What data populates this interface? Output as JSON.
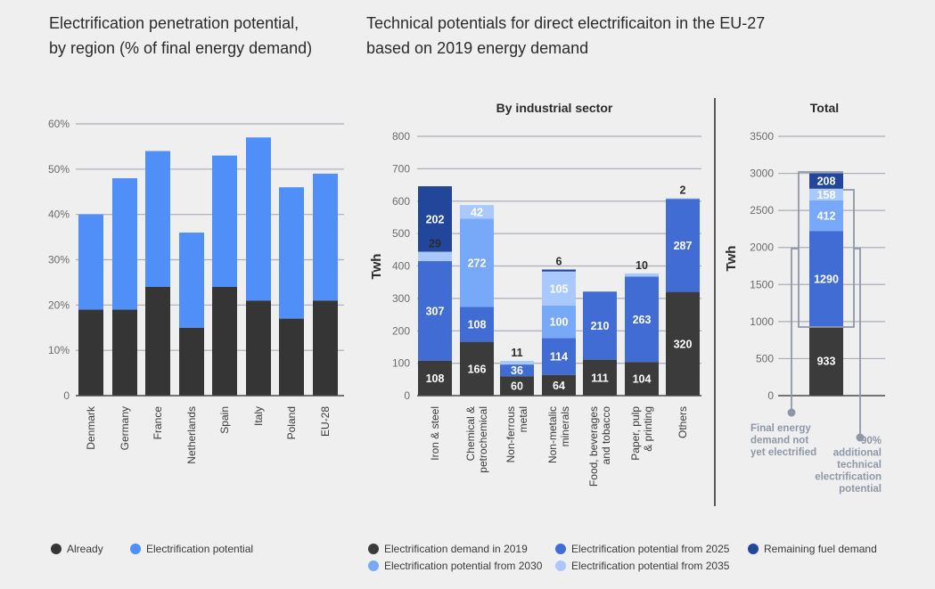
{
  "left_title": [
    "Electrification penetration potential,",
    "by region (% of final energy demand)"
  ],
  "right_title": [
    "Technical potentials for direct electrificaiton in the EU-27",
    "based on 2019 energy demand"
  ],
  "chart_data": [
    {
      "type": "bar",
      "stacked": true,
      "categories": [
        "Denmark",
        "Germany",
        "France",
        "Netherlands",
        "Spain",
        "Italy",
        "Poland",
        "EU-28"
      ],
      "series": [
        {
          "name": "Already",
          "color": "#353535",
          "values": [
            19,
            19,
            24,
            15,
            24,
            21,
            17,
            21
          ]
        },
        {
          "name": "Electrification potential",
          "color": "#4f8ff7",
          "values": [
            21,
            29,
            30,
            21,
            29,
            36,
            29,
            28
          ]
        }
      ],
      "yticks": [
        "0",
        "10%",
        "20%",
        "30%",
        "40%",
        "50%",
        "60%"
      ],
      "ylim": [
        0,
        60
      ],
      "grid": true,
      "legend": "bottom-left"
    },
    {
      "type": "bar",
      "stacked": true,
      "title": "By industrial sector",
      "ylabel": "Twh",
      "categories": [
        [
          "Iron & steel"
        ],
        [
          "Chemical &",
          "petrochemical"
        ],
        [
          "Non-ferrous",
          "metal"
        ],
        [
          "Non-metalic",
          "minerals"
        ],
        [
          "Food, beverages",
          "and tobacco"
        ],
        [
          "Paper, pulp",
          "& printing"
        ],
        [
          "Others"
        ]
      ],
      "series": [
        {
          "name": "Electrification demand in 2019",
          "color": "#3b3b3b",
          "values": [
            108,
            166,
            60,
            64,
            111,
            104,
            320
          ]
        },
        {
          "name": "Electrification potential from 2025",
          "color": "#416cd4",
          "values": [
            307,
            108,
            36,
            114,
            210,
            263,
            287
          ]
        },
        {
          "name": "Electrification potential from 2030",
          "color": "#78a8f8",
          "values": [
            0,
            272,
            0,
            100,
            0,
            0,
            0
          ]
        },
        {
          "name": "Electrification potential from 2035",
          "color": "#a9c8fb",
          "values": [
            29,
            42,
            11,
            105,
            0,
            10,
            2
          ]
        },
        {
          "name": "Remaining fuel demand",
          "color": "#22469a",
          "values": [
            202,
            0,
            0,
            6,
            0,
            0,
            0
          ]
        }
      ],
      "yticks": [
        "0",
        "100",
        "200",
        "300",
        "400",
        "500",
        "600",
        "700",
        "800"
      ],
      "ylim": [
        0,
        800
      ],
      "grid": true,
      "legend": "bottom"
    },
    {
      "type": "bar",
      "stacked": true,
      "title": "Total",
      "ylabel": "Twh",
      "categories": [
        "Total"
      ],
      "series": [
        {
          "name": "Electrification demand in 2019",
          "color": "#3b3b3b",
          "values": [
            933
          ]
        },
        {
          "name": "Electrification potential from 2025",
          "color": "#416cd4",
          "values": [
            1290
          ]
        },
        {
          "name": "Electrification potential from 2030",
          "color": "#78a8f8",
          "values": [
            412
          ]
        },
        {
          "name": "Electrification potential from 2035",
          "color": "#a9c8fb",
          "values": [
            158
          ]
        },
        {
          "name": "Remaining fuel demand",
          "color": "#22469a",
          "values": [
            208
          ]
        }
      ],
      "yticks": [
        "0",
        "500",
        "1000",
        "1500",
        "2000",
        "2500",
        "3000",
        "3500"
      ],
      "ylim": [
        0,
        3500
      ],
      "grid": true,
      "annotations": [
        [
          "Final energy",
          "demand not",
          "yet electrified"
        ],
        [
          "90%",
          "additional",
          "technical",
          "electrification",
          "potential"
        ]
      ]
    }
  ],
  "legend_left": [
    {
      "label": "Already",
      "color": "#353535"
    },
    {
      "label": "Electrification potential",
      "color": "#4f8ff7"
    }
  ],
  "legend_right": [
    {
      "label": "Electrification demand in 2019",
      "color": "#3b3b3b"
    },
    {
      "label": "Electrification potential from 2025",
      "color": "#416cd4"
    },
    {
      "label": "Remaining fuel demand",
      "color": "#22469a"
    },
    {
      "label": "Electrification potential from 2030",
      "color": "#78a8f8"
    },
    {
      "label": "Electrification potential from 2035",
      "color": "#a9c8fb"
    }
  ]
}
